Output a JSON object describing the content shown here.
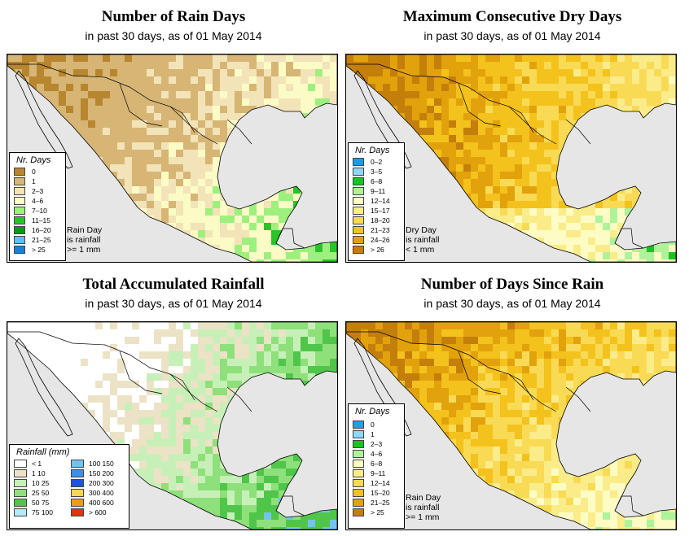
{
  "panels": [
    {
      "title": "Number of Rain Days",
      "subtitle": "in past 30 days, as of  01 May 2014",
      "legend_title": "Nr. Days",
      "legend": [
        {
          "label": "0",
          "color": "#b8862f"
        },
        {
          "label": "1",
          "color": "#d7b575"
        },
        {
          "label": "2–3",
          "color": "#f3e3b8"
        },
        {
          "label": "4–6",
          "color": "#fbfbc6"
        },
        {
          "label": "7–10",
          "color": "#9ef07e"
        },
        {
          "label": "11–15",
          "color": "#29c42a"
        },
        {
          "label": "16–20",
          "color": "#0a9a18"
        },
        {
          "label": "21–25",
          "color": "#58c3f0"
        },
        {
          "label": "> 25",
          "color": "#1d7fd4"
        }
      ],
      "note_lines": [
        "Rain Day",
        "is rainfall",
        ">= 1 mm"
      ]
    },
    {
      "title": "Maximum Consecutive Dry Days",
      "subtitle": "in past 30 days, as of  01 May 2014",
      "legend_title": "Nr. Days",
      "legend": [
        {
          "label": "0–2",
          "color": "#1a9be6"
        },
        {
          "label": "3–5",
          "color": "#8fd7f7"
        },
        {
          "label": "6–8",
          "color": "#18c41f"
        },
        {
          "label": "9–11",
          "color": "#aef29a"
        },
        {
          "label": "12–14",
          "color": "#fcfcc4"
        },
        {
          "label": "15–17",
          "color": "#fbec8a"
        },
        {
          "label": "18–20",
          "color": "#f9da55"
        },
        {
          "label": "21–23",
          "color": "#f4c21c"
        },
        {
          "label": "24–26",
          "color": "#e2a20c"
        },
        {
          "label": "> 26",
          "color": "#c47f0a"
        }
      ],
      "note_lines": [
        "Dry Day",
        "is rainfall",
        "< 1 mm"
      ]
    },
    {
      "title": "Total Accumulated Rainfall",
      "subtitle": "in past 30 days, as of  01 May 2014",
      "legend_title": "Rainfall (mm)",
      "legend_left": [
        {
          "label": "< 1",
          "color": "#ffffff"
        },
        {
          "label": "1   10",
          "color": "#ece2c6"
        },
        {
          "label": "10   25",
          "color": "#c7f0b8"
        },
        {
          "label": "25   50",
          "color": "#8ee07a"
        },
        {
          "label": "50   75",
          "color": "#4fc64a"
        },
        {
          "label": "75   100",
          "color": "#b5e9f8"
        }
      ],
      "legend_right": [
        {
          "label": "100   150",
          "color": "#74c2f2"
        },
        {
          "label": "150   200",
          "color": "#3e8fe6"
        },
        {
          "label": "200   300",
          "color": "#1f52d6"
        },
        {
          "label": "300   400",
          "color": "#f7d64a"
        },
        {
          "label": "400   600",
          "color": "#f29a18"
        },
        {
          "label": "> 600",
          "color": "#e8300a"
        }
      ]
    },
    {
      "title": "Number of Days Since Rain",
      "subtitle": "in past 30 days, as of  01 May 2014",
      "legend_title": "Nr. Days",
      "legend": [
        {
          "label": "0",
          "color": "#1aa1ea"
        },
        {
          "label": "1",
          "color": "#8fd8f7"
        },
        {
          "label": "2–3",
          "color": "#18c41f"
        },
        {
          "label": "4–6",
          "color": "#aef29a"
        },
        {
          "label": "6–8",
          "color": "#fcfcc4"
        },
        {
          "label": "9–11",
          "color": "#fbec8a"
        },
        {
          "label": "12–14",
          "color": "#f9da55"
        },
        {
          "label": "15–20",
          "color": "#f4c21c"
        },
        {
          "label": "21–25",
          "color": "#e2a20c"
        },
        {
          "label": "> 25",
          "color": "#c47f0a"
        }
      ],
      "note_lines": [
        "Rain Day",
        "is rainfall",
        ">= 1 mm"
      ]
    }
  ]
}
